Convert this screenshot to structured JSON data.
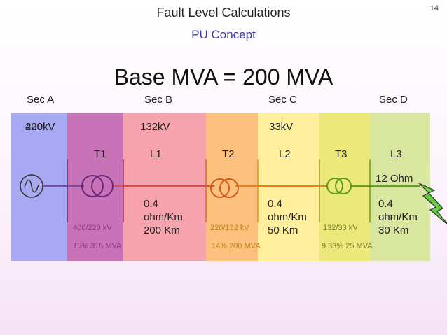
{
  "header": {
    "title": "Fault Level Calculations",
    "subtitle": "PU Concept",
    "slide_number": "14",
    "base": "Base MVA = 200 MVA"
  },
  "sections": [
    "Sec A",
    "Sec B",
    "Sec C",
    "Sec D"
  ],
  "voltages": {
    "a_overlap_1": "400kV",
    "a_overlap_2": "220kV",
    "b": "132kV",
    "c": "33kV"
  },
  "elements": {
    "t1": "T1",
    "l1": "L1",
    "t2": "T2",
    "l2": "L2",
    "t3": "T3",
    "l3": "L3"
  },
  "impedances": {
    "l3_top": "12 Ohm",
    "l1": [
      "0.4",
      "ohm/Km",
      "200 Km"
    ],
    "l2": [
      "0.4",
      "ohm/Km",
      "50 Km"
    ],
    "l3": [
      "0.4",
      "ohm/Km",
      "30 Km"
    ]
  },
  "transformers": {
    "t1_ratio": "400/220 kV",
    "t1_rating": "15% 315 MVA",
    "t2_ratio": "220/132 kV",
    "t2_rating": "14% 200 MVA",
    "t3_ratio": "132/33 kV",
    "t3_rating": "9.33% 25 MVA"
  },
  "colors": {
    "source_band": "#a9a8f2",
    "t1_band": "#c872b8",
    "l1_band": "#f7a3ae",
    "t2_band": "#fcc27d",
    "l2_band": "#ffef9c",
    "t3_band": "#ece97a",
    "l3_band": "#d9e6a0",
    "small_text_t1": "#8b3a7b",
    "small_text_t2": "#c2801e",
    "small_text_t3": "#7d7d2a"
  }
}
